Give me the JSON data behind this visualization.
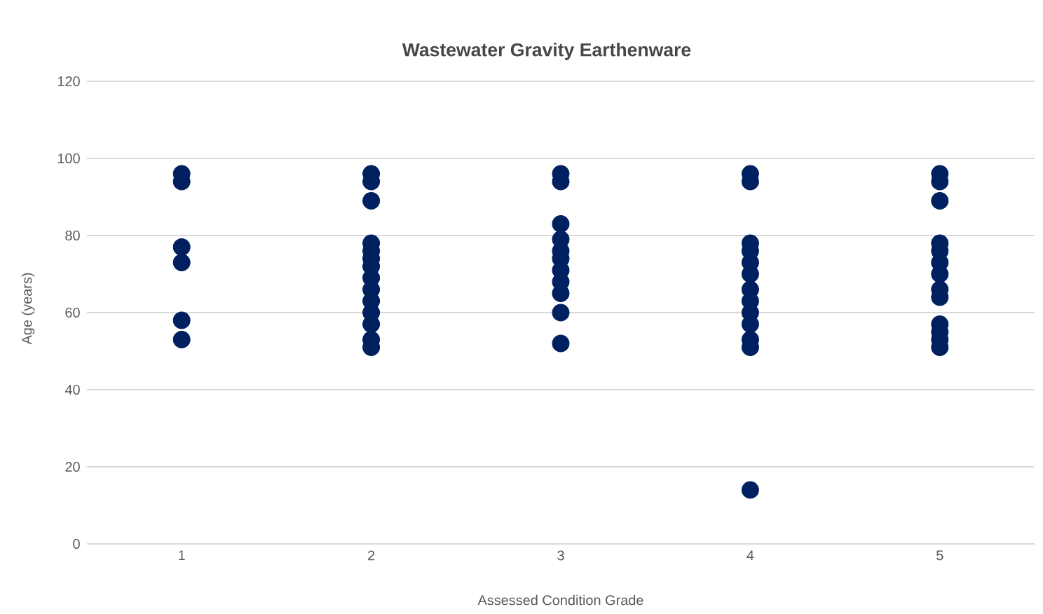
{
  "chart_data": {
    "type": "scatter",
    "title": "Wastewater Gravity Earthenware",
    "xlabel": "Assessed Condition Grade",
    "ylabel": "Age (years)",
    "x": [
      1,
      1,
      1,
      1,
      1,
      1,
      2,
      2,
      2,
      2,
      2,
      2,
      2,
      2,
      2,
      2,
      2,
      2,
      2,
      2,
      3,
      3,
      3,
      3,
      3,
      3,
      3,
      3,
      3,
      3,
      3,
      4,
      4,
      4,
      4,
      4,
      4,
      4,
      4,
      4,
      4,
      4,
      4,
      4,
      5,
      5,
      5,
      5,
      5,
      5,
      5,
      5,
      5,
      5,
      5,
      5,
      5
    ],
    "values": [
      96,
      94,
      77,
      73,
      58,
      53,
      96,
      94,
      89,
      78,
      76,
      74,
      72,
      69,
      66,
      63,
      60,
      57,
      53,
      51,
      96,
      94,
      83,
      79,
      76,
      74,
      71,
      68,
      65,
      60,
      52,
      96,
      94,
      78,
      76,
      73,
      70,
      66,
      63,
      60,
      57,
      53,
      51,
      14,
      96,
      94,
      89,
      78,
      76,
      73,
      70,
      66,
      64,
      57,
      55,
      53,
      51
    ],
    "color": "#002060",
    "marker": "circle",
    "xlim": [
      0.5,
      5.5
    ],
    "xticks": [
      1,
      2,
      3,
      4,
      5
    ],
    "ylim": [
      0,
      120
    ],
    "yticks": [
      0,
      20,
      40,
      60,
      80,
      100,
      120
    ],
    "grid": "y"
  }
}
